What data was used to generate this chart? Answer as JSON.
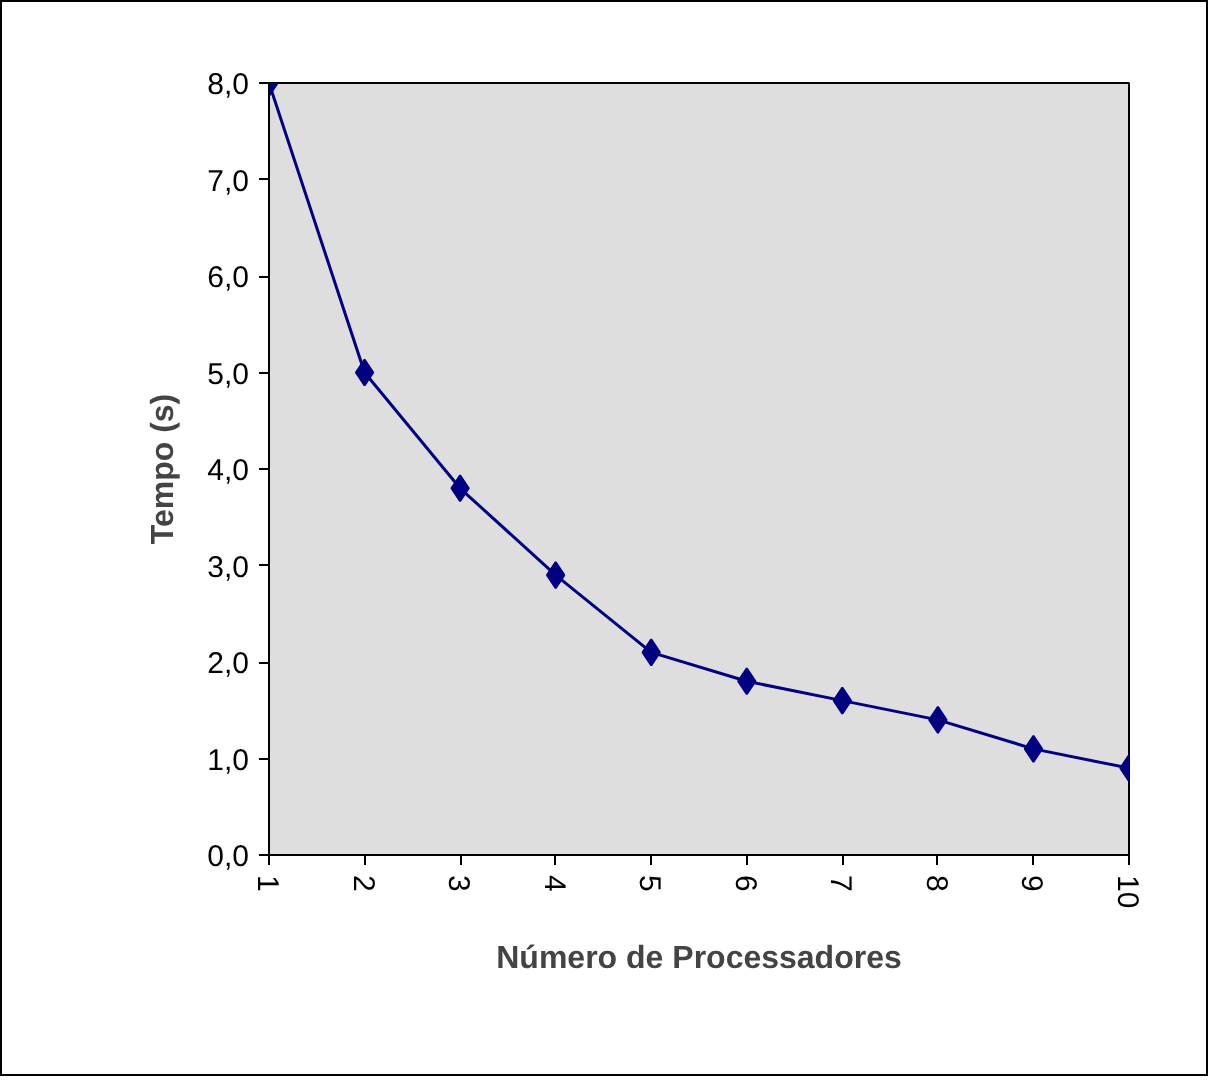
{
  "chart_data": {
    "type": "line",
    "xlabel": "Número de Processadores",
    "ylabel": "Tempo (s)",
    "categories": [
      "1",
      "2",
      "3",
      "4",
      "5",
      "6",
      "7",
      "8",
      "9",
      "10"
    ],
    "series": [
      {
        "color": "#000080",
        "values": [
          8.0,
          5.0,
          3.8,
          2.9,
          2.1,
          1.8,
          1.6,
          1.4,
          1.1,
          0.9
        ]
      }
    ],
    "ylim": [
      0,
      8
    ],
    "yticks": [
      {
        "value": 0,
        "label": "0,0"
      },
      {
        "value": 1,
        "label": "1,0"
      },
      {
        "value": 2,
        "label": "2,0"
      },
      {
        "value": 3,
        "label": "3,0"
      },
      {
        "value": 4,
        "label": "4,0"
      },
      {
        "value": 5,
        "label": "5,0"
      },
      {
        "value": 6,
        "label": "6,0"
      },
      {
        "value": 7,
        "label": "7,0"
      },
      {
        "value": 8,
        "label": "8,0"
      }
    ],
    "grid": false,
    "marker": "diamond",
    "line_style": "solid"
  }
}
